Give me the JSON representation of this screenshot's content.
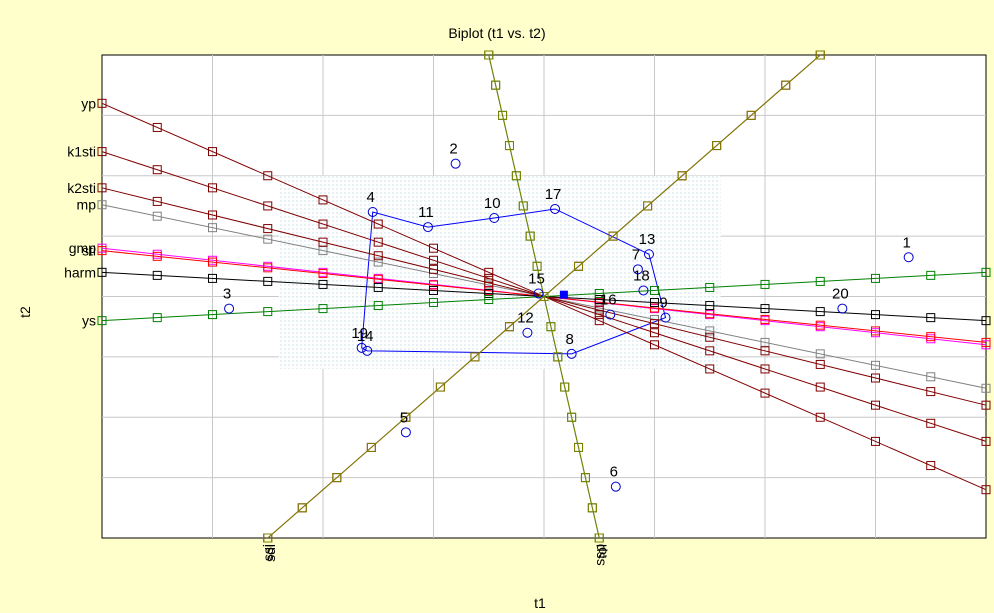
{
  "chart_data": {
    "type": "scatter",
    "title": "Biplot (t1 vs. t2)",
    "xlabel": "t1",
    "ylabel": "t2",
    "xlim": [
      -4,
      4
    ],
    "ylim": [
      -4,
      4
    ],
    "grid": true,
    "colors": {
      "background": "#ffffcc",
      "points": "#0000cc",
      "hull": "#0000ff",
      "hull_fill": "#cce4f0",
      "grid": "#c8c8c8",
      "origin_marker": "#0000ff"
    },
    "points": [
      {
        "label": "1",
        "x": 3.3,
        "y": 0.65
      },
      {
        "label": "2",
        "x": -0.8,
        "y": 2.2
      },
      {
        "label": "3",
        "x": -2.85,
        "y": -0.2
      },
      {
        "label": "4",
        "x": -1.55,
        "y": 1.4
      },
      {
        "label": "5",
        "x": -1.25,
        "y": -2.25
      },
      {
        "label": "6",
        "x": 0.65,
        "y": -3.15
      },
      {
        "label": "7",
        "x": 0.85,
        "y": 0.45
      },
      {
        "label": "8",
        "x": 0.25,
        "y": -0.95
      },
      {
        "label": "9",
        "x": 1.1,
        "y": -0.35
      },
      {
        "label": "10",
        "x": -0.45,
        "y": 1.3
      },
      {
        "label": "11",
        "x": -1.05,
        "y": 1.15
      },
      {
        "label": "12",
        "x": -0.15,
        "y": -0.6
      },
      {
        "label": "13",
        "x": 0.95,
        "y": 0.7
      },
      {
        "label": "14",
        "x": -1.6,
        "y": -0.9
      },
      {
        "label": "15",
        "x": -0.05,
        "y": 0.05
      },
      {
        "label": "16",
        "x": 0.6,
        "y": -0.3
      },
      {
        "label": "17",
        "x": 0.1,
        "y": 1.45
      },
      {
        "label": "18",
        "x": 0.9,
        "y": 0.1
      },
      {
        "label": "19",
        "x": -1.65,
        "y": -0.85
      },
      {
        "label": "20",
        "x": 2.7,
        "y": -0.2
      }
    ],
    "hull_order": [
      "10",
      "17",
      "13",
      "9",
      "8",
      "14",
      "19",
      "4",
      "11"
    ],
    "loadings": [
      {
        "label": "yp",
        "color": "#800000",
        "slope": -0.8
      },
      {
        "label": "k1sti",
        "color": "#800000",
        "slope": -0.6
      },
      {
        "label": "mp",
        "color": "#808080",
        "slope": -0.38
      },
      {
        "label": "gmp",
        "color": "#ff00ff",
        "slope": -0.2
      },
      {
        "label": "sti",
        "color": "#ff0000",
        "slope": -0.19
      },
      {
        "label": "harm",
        "color": "#000000",
        "slope": -0.1
      },
      {
        "label": "k2sti",
        "color": "#800000",
        "slope": -0.45
      },
      {
        "label": "ys",
        "color": "#008000",
        "slope": 0.1
      },
      {
        "label": "ssi",
        "color": "#800000",
        "slope": 1.6
      },
      {
        "label": "sdi",
        "color": "#808000",
        "slope": 1.6
      },
      {
        "label": "ssp",
        "color": "#008000",
        "slope": -8.0
      },
      {
        "label": "tol",
        "color": "#808000",
        "slope": -8.0
      }
    ],
    "left_axis_labels": [
      "yp",
      "k1sti",
      "mp",
      "gmp",
      "sti",
      "harm",
      "k2sti",
      "ys"
    ],
    "bottom_axis_labels": [
      "ssi",
      "sdi",
      "ssp",
      "tol"
    ]
  }
}
